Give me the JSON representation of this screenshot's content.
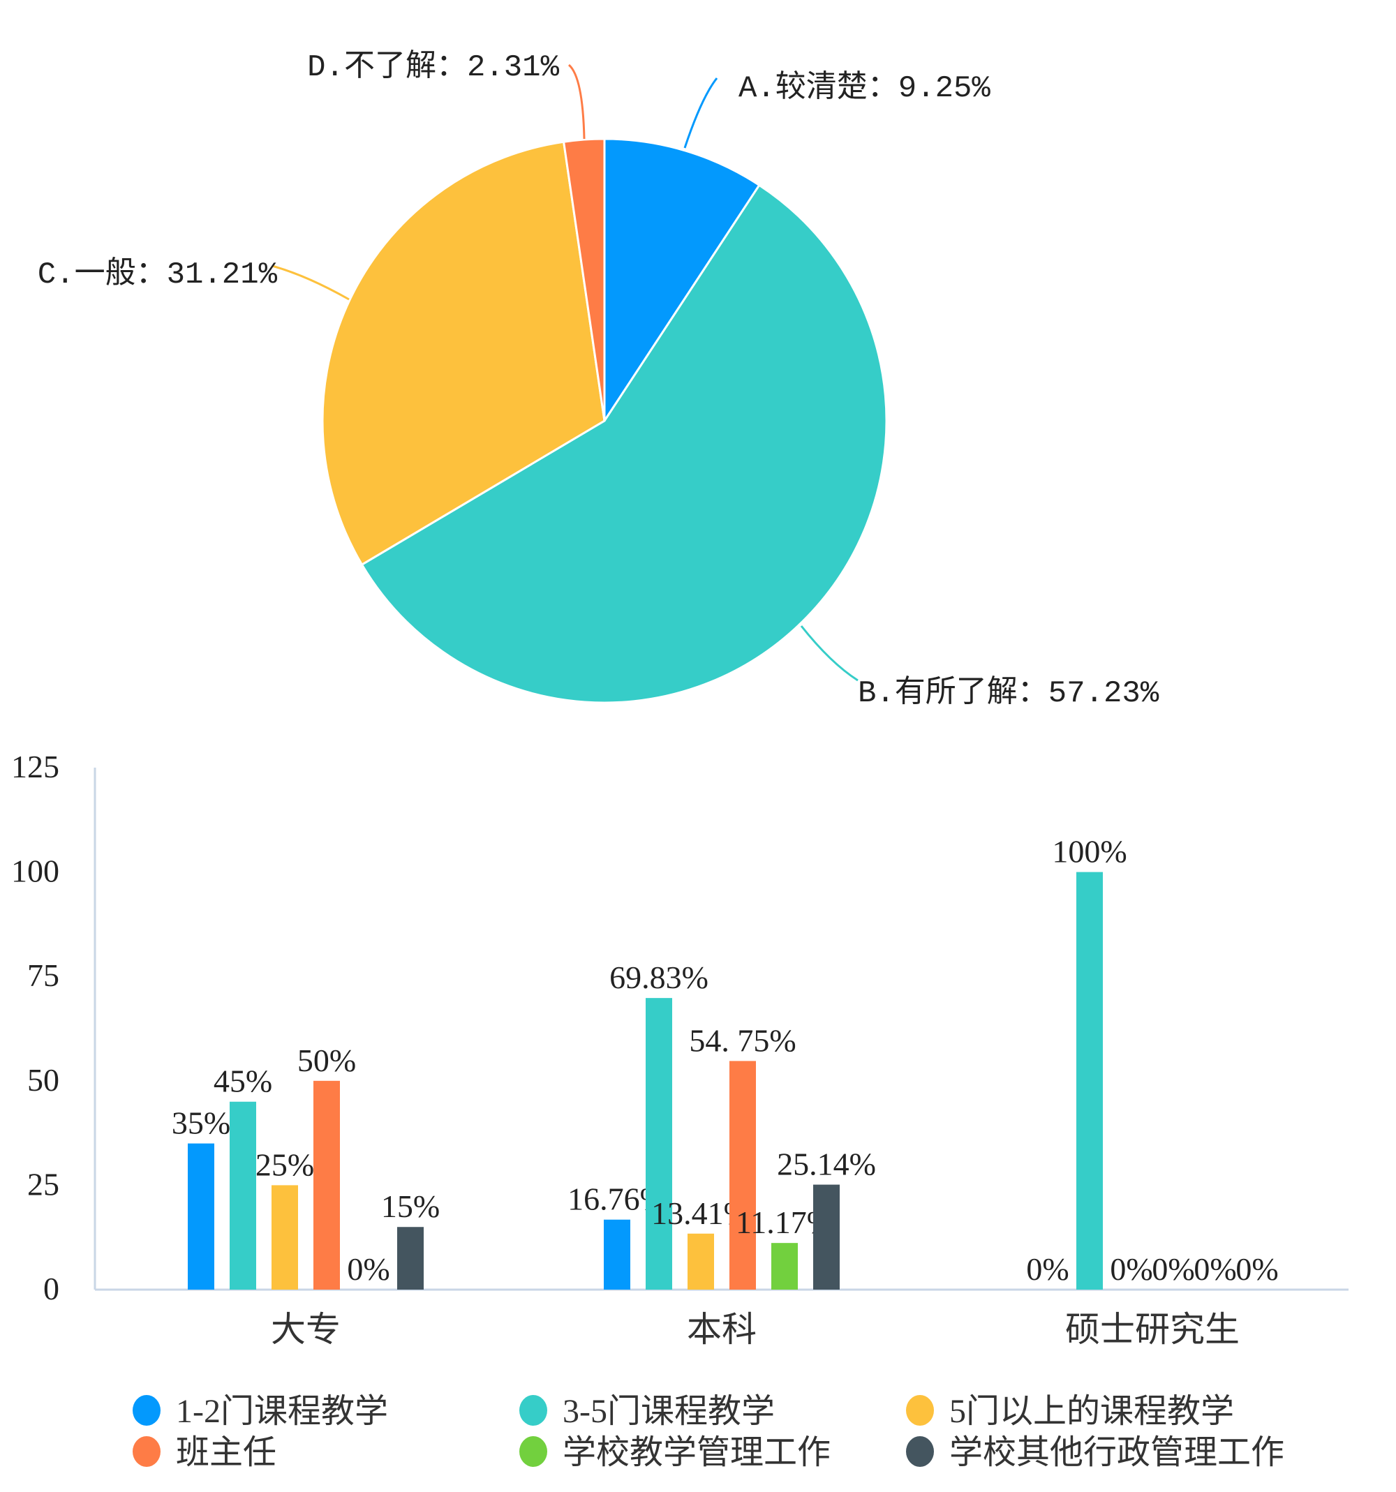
{
  "chart_data": [
    {
      "type": "pie",
      "slices": [
        {
          "label": "A.较清楚：9.25%",
          "value": 9.25,
          "color": "#0399fd"
        },
        {
          "label": "B.有所了解：57.23%",
          "value": 57.23,
          "color": "#36cdc8"
        },
        {
          "label": "C.一般：31.21%",
          "value": 31.21,
          "color": "#fdc13d"
        },
        {
          "label": "D.不了解：2.31%",
          "value": 2.31,
          "color": "#fe7c46"
        }
      ]
    },
    {
      "type": "bar",
      "categories": [
        "大专",
        "本科",
        "硕士研究生"
      ],
      "ylim": [
        0,
        125
      ],
      "yticks": [
        "0",
        "25",
        "50",
        "75",
        "100",
        "125"
      ],
      "grid": false,
      "legend_position": "bottom",
      "series": [
        {
          "name": "1-2门课程教学",
          "color": "#0399fd",
          "values": [
            35,
            16.76,
            0
          ],
          "labels": [
            "35%",
            "16.76%",
            "0%"
          ]
        },
        {
          "name": "3-5门课程教学",
          "color": "#36cdc8",
          "values": [
            45,
            69.83,
            100
          ],
          "labels": [
            "45%",
            "69.83%",
            "100%"
          ]
        },
        {
          "name": "5门以上的课程教学",
          "color": "#fdc13d",
          "values": [
            25,
            13.41,
            0
          ],
          "labels": [
            "25%",
            "13.41%",
            "0%"
          ]
        },
        {
          "name": "班主任",
          "color": "#fe7c46",
          "values": [
            50,
            54.75,
            0
          ],
          "labels": [
            "50%",
            "54. 75%",
            "0%"
          ]
        },
        {
          "name": "学校教学管理工作",
          "color": "#72d03e",
          "values": [
            0,
            11.17,
            0
          ],
          "labels": [
            "0%",
            "11.17%",
            "0%"
          ]
        },
        {
          "name": "学校其他行政管理工作",
          "color": "#44555f",
          "values": [
            15,
            25.14,
            0
          ],
          "labels": [
            "15%",
            "25.14%",
            "0%"
          ]
        }
      ]
    }
  ]
}
